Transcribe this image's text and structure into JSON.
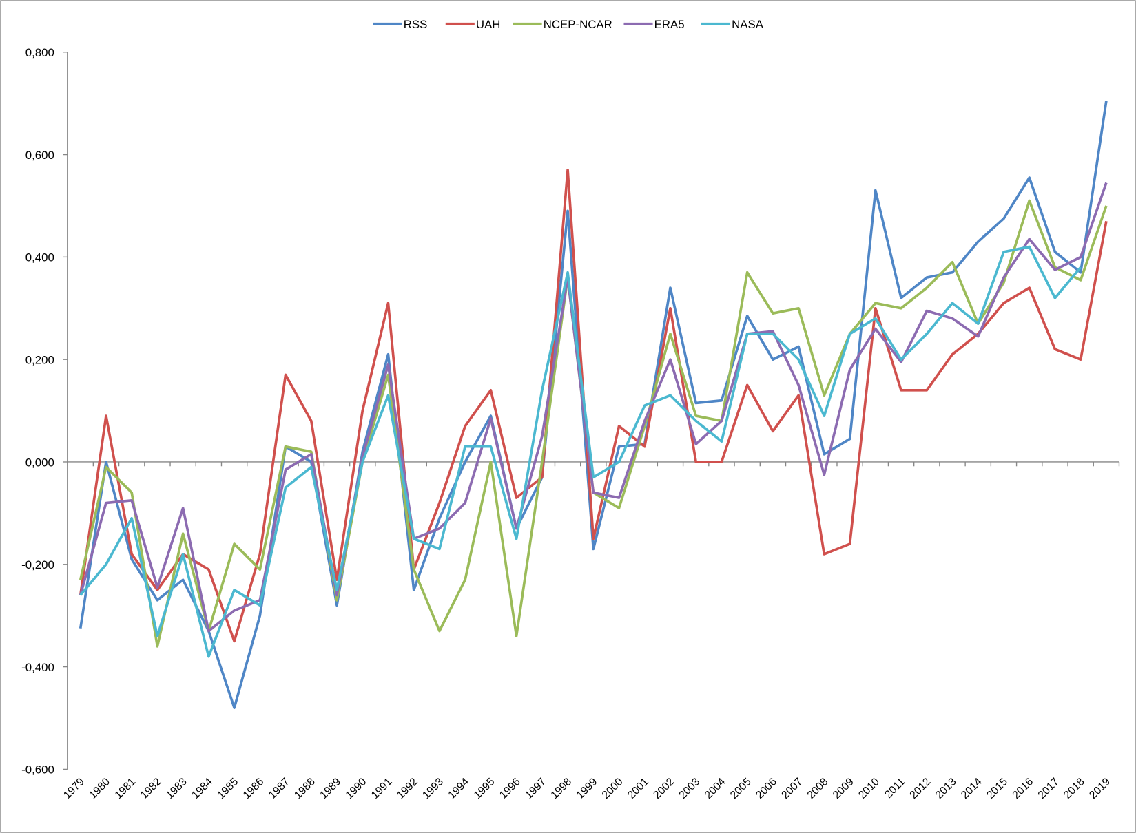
{
  "chart_data": {
    "type": "line",
    "title": "",
    "xlabel": "",
    "ylabel": "",
    "ylim": [
      -0.6,
      0.8
    ],
    "yticks": [
      "0,800",
      "0,600",
      "0,400",
      "0,200",
      "0,000",
      "-0,200",
      "-0,400",
      "-0,600"
    ],
    "ytick_values": [
      0.8,
      0.6,
      0.4,
      0.2,
      0.0,
      -0.2,
      -0.4,
      -0.6
    ],
    "grid": false,
    "legend_position": "top",
    "categories": [
      "1979",
      "1980",
      "1981",
      "1982",
      "1983",
      "1984",
      "1985",
      "1986",
      "1987",
      "1988",
      "1989",
      "1990",
      "1991",
      "1992",
      "1993",
      "1994",
      "1995",
      "1996",
      "1997",
      "1998",
      "1999",
      "2000",
      "2001",
      "2002",
      "2003",
      "2004",
      "2005",
      "2006",
      "2007",
      "2008",
      "2009",
      "2010",
      "2011",
      "2012",
      "2013",
      "2014",
      "2015",
      "2016",
      "2017",
      "2018",
      "2019"
    ],
    "series": [
      {
        "name": "RSS",
        "color": "#4f86c6",
        "values": [
          -0.325,
          0.0,
          -0.19,
          -0.27,
          -0.23,
          -0.33,
          -0.48,
          -0.3,
          0.03,
          0.0,
          -0.28,
          0.02,
          0.21,
          -0.25,
          -0.11,
          0.0,
          0.09,
          -0.13,
          -0.03,
          0.49,
          -0.17,
          0.03,
          0.035,
          0.34,
          0.115,
          0.12,
          0.285,
          0.2,
          0.225,
          0.015,
          0.045,
          0.53,
          0.32,
          0.36,
          0.37,
          0.43,
          0.475,
          0.555,
          0.41,
          0.37,
          0.705
        ]
      },
      {
        "name": "UAH",
        "color": "#d0504d",
        "values": [
          -0.26,
          0.09,
          -0.18,
          -0.25,
          -0.18,
          -0.21,
          -0.35,
          -0.18,
          0.17,
          0.08,
          -0.23,
          0.1,
          0.31,
          -0.21,
          -0.08,
          0.07,
          0.14,
          -0.07,
          -0.03,
          0.57,
          -0.15,
          0.07,
          0.03,
          0.3,
          0.0,
          0.0,
          0.15,
          0.06,
          0.13,
          -0.18,
          -0.16,
          0.3,
          0.14,
          0.14,
          0.21,
          0.25,
          0.31,
          0.34,
          0.22,
          0.2,
          0.47
        ]
      },
      {
        "name": "NCEP-NCAR",
        "color": "#9bbb59",
        "values": [
          -0.23,
          -0.01,
          -0.06,
          -0.36,
          -0.14,
          -0.33,
          -0.16,
          -0.21,
          0.03,
          0.02,
          -0.27,
          0.0,
          0.17,
          -0.21,
          -0.33,
          -0.23,
          0.0,
          -0.34,
          0.0,
          0.36,
          -0.06,
          -0.09,
          0.07,
          0.25,
          0.09,
          0.08,
          0.37,
          0.29,
          0.3,
          0.13,
          0.25,
          0.31,
          0.3,
          0.34,
          0.39,
          0.27,
          0.35,
          0.51,
          0.38,
          0.355,
          0.5
        ]
      },
      {
        "name": "ERA5",
        "color": "#8c6bb1",
        "values": [
          -0.26,
          -0.08,
          -0.075,
          -0.245,
          -0.09,
          -0.33,
          -0.29,
          -0.27,
          -0.015,
          0.015,
          -0.26,
          0.01,
          0.19,
          -0.15,
          -0.13,
          -0.08,
          0.085,
          -0.13,
          0.05,
          0.36,
          -0.06,
          -0.07,
          0.08,
          0.2,
          0.035,
          0.08,
          0.25,
          0.255,
          0.15,
          -0.025,
          0.18,
          0.26,
          0.195,
          0.295,
          0.28,
          0.245,
          0.36,
          0.435,
          0.375,
          0.4,
          0.545
        ]
      },
      {
        "name": "NASA",
        "color": "#4bb8d0",
        "values": [
          -0.26,
          -0.2,
          -0.11,
          -0.34,
          -0.18,
          -0.38,
          -0.25,
          -0.28,
          -0.05,
          -0.01,
          -0.25,
          0.0,
          0.13,
          -0.15,
          -0.17,
          0.03,
          0.03,
          -0.15,
          0.14,
          0.37,
          -0.03,
          0.0,
          0.11,
          0.13,
          0.08,
          0.04,
          0.25,
          0.25,
          0.2,
          0.09,
          0.25,
          0.28,
          0.2,
          0.25,
          0.31,
          0.27,
          0.41,
          0.42,
          0.32,
          0.38,
          null
        ]
      }
    ]
  }
}
